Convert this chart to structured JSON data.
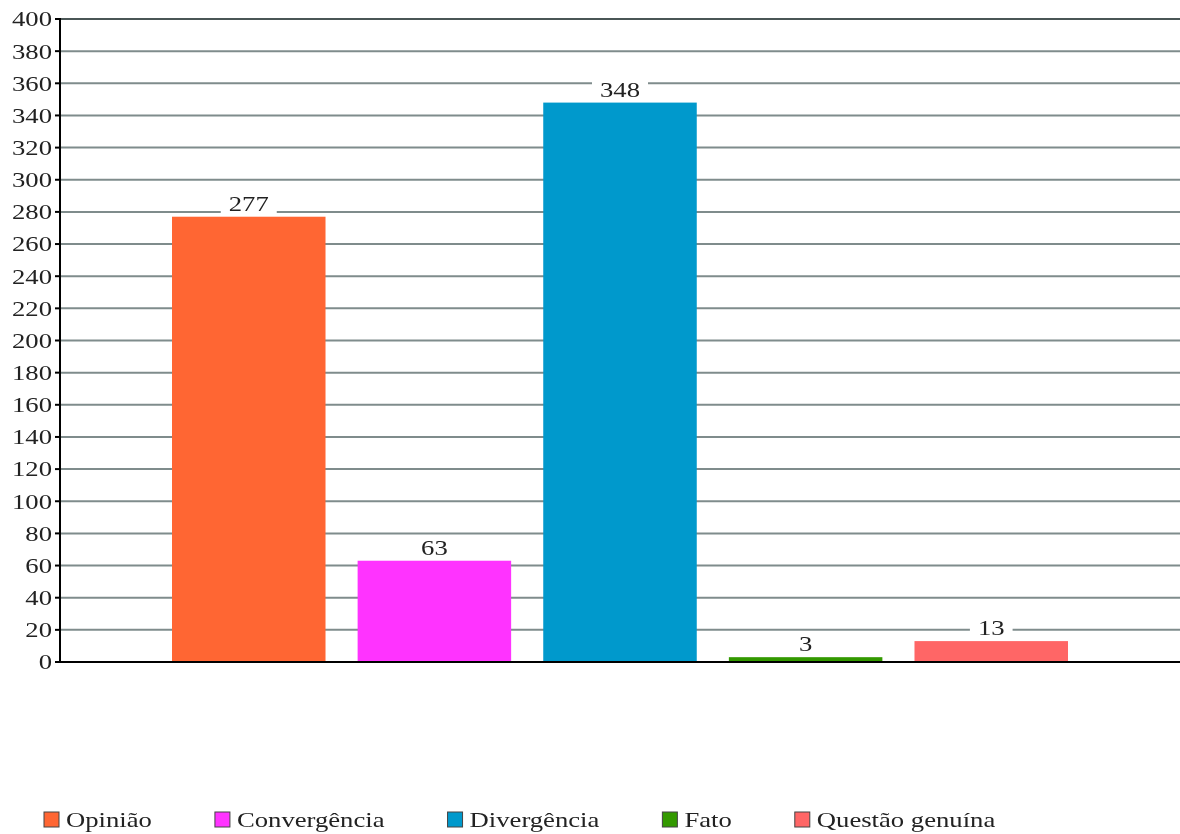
{
  "chart_data": {
    "type": "bar",
    "categories": [
      null
    ],
    "series": [
      {
        "name": "Opinião",
        "color": "#ff6633",
        "values": [
          277
        ]
      },
      {
        "name": "Convergência",
        "color": "#ff33ff",
        "values": [
          63
        ]
      },
      {
        "name": "Divergência",
        "color": "#0099cc",
        "values": [
          348
        ]
      },
      {
        "name": "Fato",
        "color": "#339900",
        "values": [
          3
        ]
      },
      {
        "name": "Questão genuína",
        "color": "#ff6666",
        "values": [
          13
        ]
      }
    ],
    "ylim": [
      0,
      400
    ],
    "yticks": [
      0,
      20,
      40,
      60,
      80,
      100,
      120,
      140,
      160,
      180,
      200,
      220,
      240,
      260,
      280,
      300,
      320,
      340,
      360,
      380,
      400
    ],
    "grid": "y",
    "legend": "bottom",
    "data_labels": true
  }
}
